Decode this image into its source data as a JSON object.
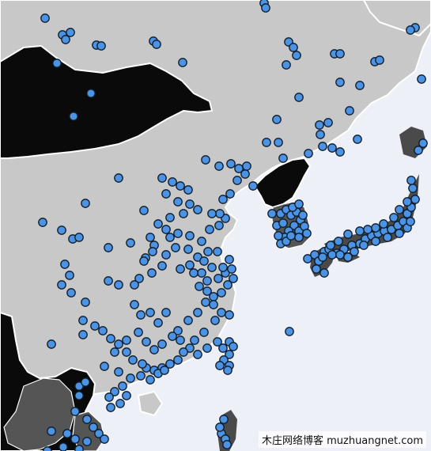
{
  "map": {
    "colors": {
      "sea": "#eef0f8",
      "land_light": "#c8c8c8",
      "land_dark": "#0a0a0a",
      "land_mid": "#555555",
      "border": "#ffffff",
      "marker_fill": "#4d93e3",
      "marker_stroke": "#0d1b2a"
    },
    "marker_count": 330
  },
  "watermark": {
    "text": "木庄网络博客 muzhuangnet.com"
  }
}
